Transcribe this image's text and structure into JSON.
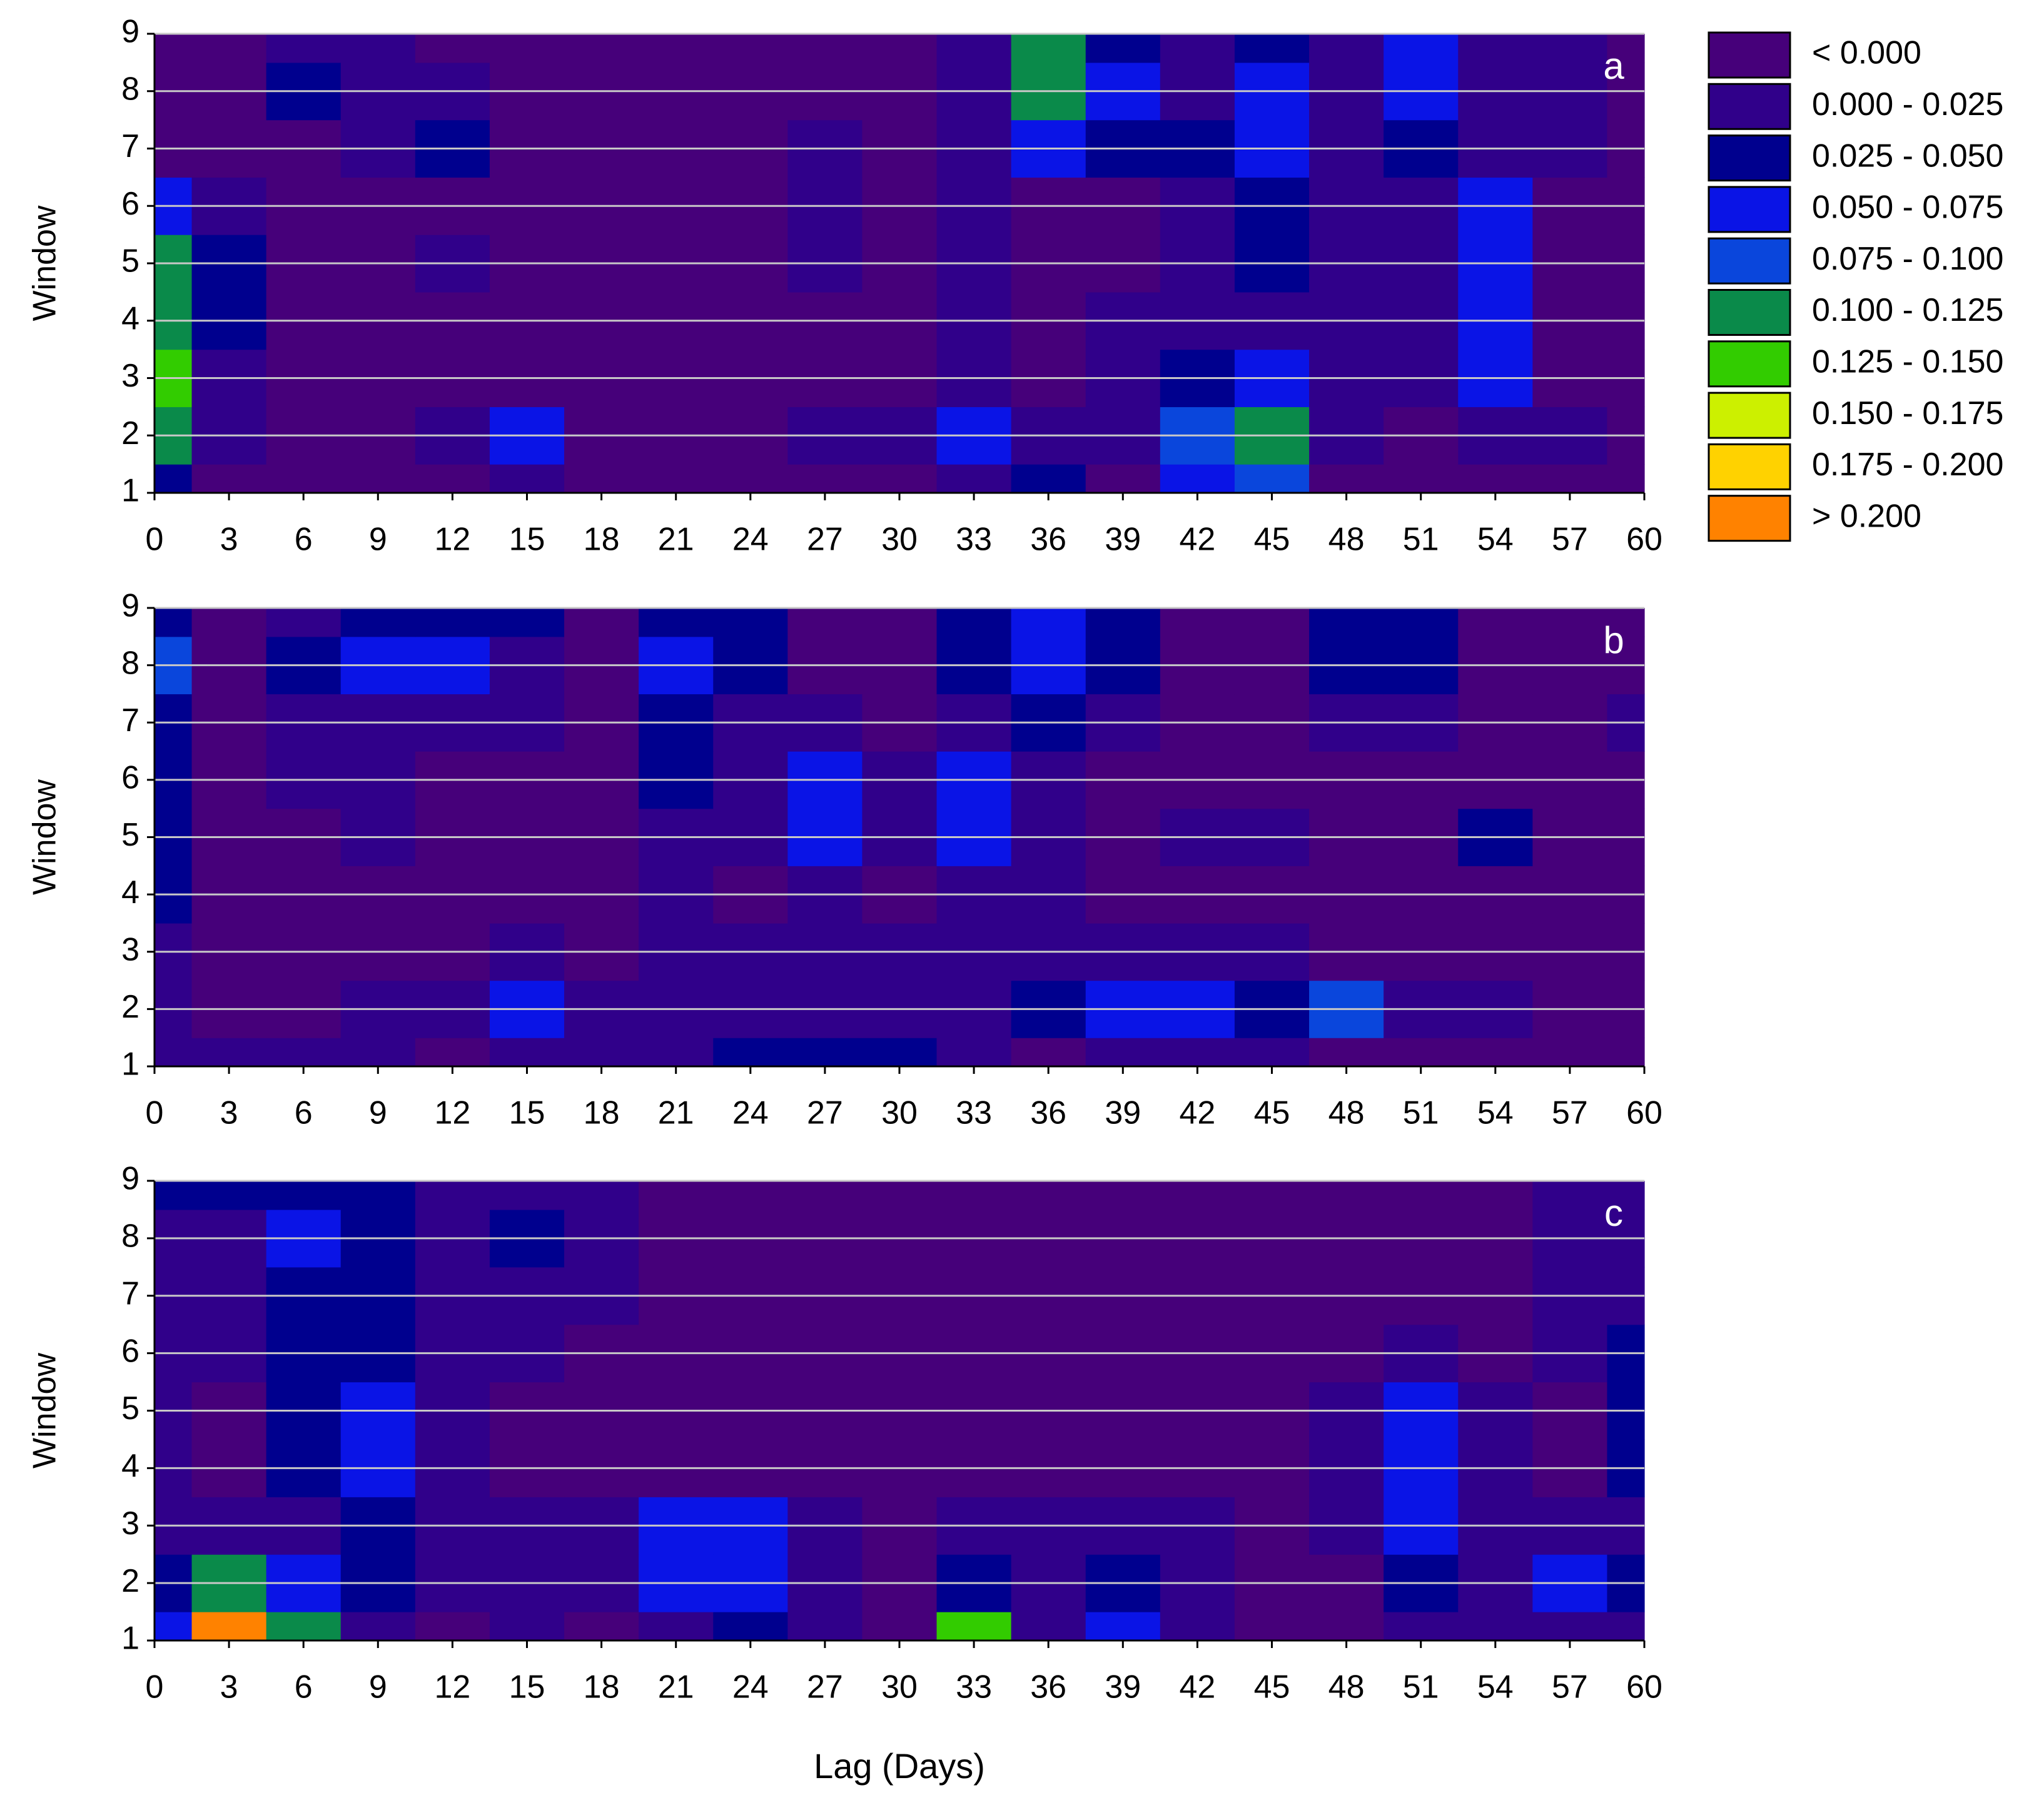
{
  "chart_data": [
    {
      "type": "contour",
      "panel_label": "a",
      "ylabel": "Window",
      "x": [
        0,
        3,
        6,
        9,
        12,
        15,
        18,
        21,
        24,
        27,
        30,
        33,
        36,
        39,
        42,
        45,
        48,
        51,
        54,
        57,
        60
      ],
      "y": [
        1,
        2,
        3,
        4,
        5,
        6,
        7,
        8,
        9
      ],
      "z": [
        [
          0.03,
          -0.01,
          -0.01,
          -0.01,
          -0.01,
          0.01,
          -0.01,
          -0.01,
          -0.01,
          -0.01,
          -0.01,
          0.02,
          0.03,
          -0.01,
          0.06,
          0.08,
          -0.01,
          -0.01,
          -0.01,
          -0.01,
          -0.01
        ],
        [
          0.1,
          0.01,
          -0.01,
          -0.01,
          0.02,
          0.05,
          -0.01,
          -0.01,
          -0.01,
          0.01,
          0.01,
          0.05,
          0.01,
          0.02,
          0.08,
          0.12,
          0.02,
          -0.01,
          0.02,
          0.01,
          -0.01
        ],
        [
          0.13,
          0.02,
          -0.01,
          -0.01,
          -0.01,
          -0.01,
          -0.01,
          -0.01,
          -0.01,
          -0.01,
          -0.01,
          0.02,
          -0.01,
          0.02,
          0.04,
          0.06,
          0.02,
          0.01,
          0.05,
          -0.01,
          -0.01
        ],
        [
          0.12,
          0.03,
          -0.01,
          -0.01,
          -0.01,
          -0.01,
          -0.01,
          -0.01,
          -0.01,
          -0.01,
          -0.01,
          0.01,
          -0.01,
          0.02,
          0.01,
          0.02,
          0.01,
          0.01,
          0.06,
          -0.01,
          -0.01
        ],
        [
          0.11,
          0.03,
          -0.01,
          -0.01,
          0.01,
          -0.01,
          -0.01,
          -0.01,
          -0.01,
          0.01,
          -0.01,
          0.01,
          -0.01,
          -0.01,
          0.02,
          0.03,
          0.01,
          0.02,
          0.07,
          -0.01,
          -0.01
        ],
        [
          0.06,
          0.01,
          -0.01,
          -0.01,
          -0.01,
          -0.01,
          -0.01,
          -0.01,
          -0.01,
          0.01,
          -0.01,
          0.01,
          -0.01,
          -0.01,
          0.02,
          0.04,
          0.01,
          0.02,
          0.06,
          -0.01,
          -0.01
        ],
        [
          -0.01,
          -0.01,
          -0.01,
          0.02,
          0.04,
          -0.01,
          -0.01,
          -0.01,
          -0.01,
          0.01,
          -0.01,
          0.02,
          0.06,
          0.03,
          0.03,
          0.06,
          0.02,
          0.04,
          0.02,
          0.01,
          -0.01
        ],
        [
          -0.01,
          -0.01,
          0.03,
          0.02,
          0.01,
          -0.01,
          -0.01,
          -0.01,
          -0.01,
          -0.01,
          -0.01,
          0.02,
          0.11,
          0.06,
          0.02,
          0.07,
          0.02,
          0.06,
          0.02,
          0.01,
          -0.01
        ],
        [
          -0.01,
          -0.01,
          0.02,
          0.02,
          -0.01,
          -0.01,
          -0.01,
          -0.01,
          -0.01,
          -0.01,
          -0.01,
          0.01,
          0.1,
          0.04,
          0.01,
          0.04,
          0.02,
          0.05,
          0.02,
          0.02,
          -0.01
        ]
      ],
      "xlim": [
        0,
        60
      ],
      "ylim": [
        1,
        9
      ],
      "xticks": [
        0,
        3,
        6,
        9,
        12,
        15,
        18,
        21,
        24,
        27,
        30,
        33,
        36,
        39,
        42,
        45,
        48,
        51,
        54,
        57,
        60
      ],
      "yticks": [
        1,
        2,
        3,
        4,
        5,
        6,
        7,
        8,
        9
      ],
      "grid": true,
      "levels": [
        0,
        0.025,
        0.05,
        0.075,
        0.1,
        0.125,
        0.15,
        0.175,
        0.2
      ],
      "legend": [
        {
          "label": "< 0.000",
          "color": "#46007a"
        },
        {
          "label": "0.000 - 0.025",
          "color": "#30008a"
        },
        {
          "label": "0.025 - 0.050",
          "color": "#00008e"
        },
        {
          "label": "0.050 - 0.075",
          "color": "#0a14e6"
        },
        {
          "label": "0.075 - 0.100",
          "color": "#0a46dc"
        },
        {
          "label": "0.100 - 0.125",
          "color": "#0a8a4a"
        },
        {
          "label": "0.125 - 0.150",
          "color": "#32cc00"
        },
        {
          "label": "0.150 - 0.175",
          "color": "#ccf000"
        },
        {
          "label": "0.175 - 0.200",
          "color": "#ffd200"
        },
        {
          "label": "> 0.200",
          "color": "#ff8200"
        }
      ]
    },
    {
      "type": "contour",
      "panel_label": "b",
      "ylabel": "Window",
      "x": [
        0,
        3,
        6,
        9,
        12,
        15,
        18,
        21,
        24,
        27,
        30,
        33,
        36,
        39,
        42,
        45,
        48,
        51,
        54,
        57,
        60
      ],
      "y": [
        1,
        2,
        3,
        4,
        5,
        6,
        7,
        8,
        9
      ],
      "z": [
        [
          0.01,
          0.02,
          0.02,
          0.01,
          -0.01,
          0.01,
          0.01,
          0.01,
          0.03,
          0.03,
          0.04,
          0.02,
          -0.01,
          0.01,
          0.01,
          0.02,
          -0.01,
          -0.01,
          -0.01,
          -0.01,
          -0.01
        ],
        [
          0.01,
          -0.01,
          -0.01,
          0.01,
          0.01,
          0.05,
          0.01,
          0.02,
          0.02,
          0.02,
          0.01,
          0.02,
          0.03,
          0.07,
          0.05,
          0.03,
          0.09,
          0.01,
          0.02,
          -0.01,
          -0.01
        ],
        [
          0.02,
          -0.01,
          -0.01,
          -0.01,
          -0.01,
          0.01,
          -0.01,
          0.01,
          0.01,
          0.02,
          0.01,
          0.01,
          0.01,
          0.02,
          0.01,
          0.01,
          -0.01,
          -0.01,
          -0.01,
          -0.01,
          -0.01
        ],
        [
          0.03,
          -0.01,
          -0.01,
          -0.01,
          -0.01,
          -0.01,
          -0.01,
          0.02,
          -0.01,
          0.02,
          -0.01,
          0.02,
          0.01,
          -0.01,
          -0.01,
          -0.01,
          -0.01,
          -0.01,
          -0.01,
          -0.01,
          -0.01
        ],
        [
          0.04,
          -0.01,
          -0.01,
          0.01,
          -0.01,
          -0.01,
          -0.01,
          0.02,
          0.01,
          0.06,
          0.02,
          0.06,
          0.02,
          -0.01,
          0.01,
          0.01,
          -0.01,
          -0.01,
          0.03,
          -0.01,
          -0.01
        ],
        [
          0.04,
          -0.01,
          0.01,
          0.01,
          -0.01,
          -0.01,
          -0.01,
          0.03,
          0.01,
          0.05,
          0.01,
          0.05,
          0.02,
          -0.01,
          -0.01,
          -0.01,
          -0.01,
          -0.01,
          -0.01,
          -0.01,
          -0.01
        ],
        [
          0.04,
          -0.01,
          0.02,
          0.02,
          0.01,
          0.01,
          -0.01,
          0.04,
          0.02,
          0.01,
          -0.01,
          0.02,
          0.04,
          0.01,
          -0.01,
          -0.01,
          0.02,
          0.02,
          -0.01,
          -0.01,
          0.02
        ],
        [
          0.08,
          -0.01,
          0.03,
          0.06,
          0.06,
          0.02,
          -0.01,
          0.05,
          0.04,
          -0.01,
          -0.01,
          0.03,
          0.07,
          0.04,
          -0.01,
          -0.01,
          0.03,
          0.03,
          -0.01,
          -0.01,
          -0.01
        ],
        [
          0.03,
          -0.01,
          0.02,
          0.04,
          0.04,
          0.03,
          -0.01,
          0.03,
          0.03,
          -0.01,
          -0.01,
          0.03,
          0.05,
          0.04,
          -0.01,
          -0.01,
          0.03,
          0.03,
          -0.01,
          -0.01,
          -0.01
        ]
      ],
      "xlim": [
        0,
        60
      ],
      "ylim": [
        1,
        9
      ],
      "xticks": [
        0,
        3,
        6,
        9,
        12,
        15,
        18,
        21,
        24,
        27,
        30,
        33,
        36,
        39,
        42,
        45,
        48,
        51,
        54,
        57,
        60
      ],
      "yticks": [
        1,
        2,
        3,
        4,
        5,
        6,
        7,
        8,
        9
      ],
      "grid": true
    },
    {
      "type": "contour",
      "panel_label": "c",
      "ylabel": "Window",
      "xlabel": "Lag (Days)",
      "x": [
        0,
        3,
        6,
        9,
        12,
        15,
        18,
        21,
        24,
        27,
        30,
        33,
        36,
        39,
        42,
        45,
        48,
        51,
        54,
        57,
        60
      ],
      "y": [
        1,
        2,
        3,
        4,
        5,
        6,
        7,
        8,
        9
      ],
      "z": [
        [
          0.06,
          0.22,
          0.1,
          0.02,
          -0.01,
          0.01,
          -0.01,
          0.02,
          0.03,
          0.01,
          -0.01,
          0.14,
          0.01,
          0.05,
          0.01,
          -0.01,
          -0.01,
          0.02,
          0.02,
          0.02,
          0.01
        ],
        [
          0.04,
          0.12,
          0.05,
          0.03,
          0.01,
          0.01,
          0.01,
          0.05,
          0.07,
          0.01,
          -0.01,
          0.04,
          0.02,
          0.03,
          0.02,
          -0.01,
          -0.01,
          0.04,
          0.02,
          0.06,
          0.04
        ],
        [
          0.02,
          0.01,
          0.02,
          0.03,
          0.01,
          0.02,
          0.02,
          0.05,
          0.07,
          0.01,
          -0.01,
          0.01,
          0.02,
          0.02,
          0.02,
          -0.01,
          0.02,
          0.05,
          0.02,
          0.01,
          0.01
        ],
        [
          0.02,
          -0.01,
          0.03,
          0.06,
          0.01,
          -0.01,
          -0.01,
          -0.01,
          -0.01,
          -0.01,
          -0.01,
          -0.01,
          -0.01,
          -0.01,
          -0.01,
          -0.01,
          0.02,
          0.06,
          0.01,
          -0.01,
          0.03
        ],
        [
          0.01,
          -0.01,
          0.04,
          0.06,
          0.01,
          -0.01,
          -0.01,
          -0.01,
          -0.01,
          -0.01,
          -0.01,
          -0.01,
          -0.01,
          -0.01,
          -0.01,
          -0.01,
          0.02,
          0.06,
          0.01,
          -0.01,
          0.03
        ],
        [
          0.01,
          0.01,
          0.04,
          0.04,
          0.02,
          0.01,
          -0.01,
          -0.01,
          -0.01,
          -0.01,
          -0.01,
          -0.01,
          -0.01,
          -0.01,
          -0.01,
          -0.01,
          -0.01,
          0.01,
          -0.01,
          0.01,
          0.03
        ],
        [
          0.02,
          0.02,
          0.04,
          0.04,
          0.02,
          0.02,
          0.01,
          -0.01,
          -0.01,
          -0.01,
          -0.01,
          -0.01,
          -0.01,
          -0.01,
          -0.01,
          -0.01,
          -0.01,
          -0.01,
          -0.01,
          0.01,
          0.02
        ],
        [
          0.02,
          0.02,
          0.05,
          0.04,
          0.02,
          0.03,
          0.02,
          -0.01,
          -0.01,
          -0.01,
          -0.01,
          -0.01,
          -0.01,
          -0.01,
          -0.01,
          -0.01,
          -0.01,
          -0.01,
          -0.01,
          0.02,
          0.02
        ],
        [
          0.03,
          0.04,
          0.04,
          0.04,
          0.02,
          0.02,
          0.02,
          -0.01,
          -0.01,
          -0.01,
          -0.01,
          -0.01,
          -0.01,
          -0.01,
          -0.01,
          -0.01,
          -0.01,
          -0.01,
          -0.01,
          0.02,
          0.02
        ]
      ],
      "xlim": [
        0,
        60
      ],
      "ylim": [
        1,
        9
      ],
      "xticks": [
        0,
        3,
        6,
        9,
        12,
        15,
        18,
        21,
        24,
        27,
        30,
        33,
        36,
        39,
        42,
        45,
        48,
        51,
        54,
        57,
        60
      ],
      "yticks": [
        1,
        2,
        3,
        4,
        5,
        6,
        7,
        8,
        9
      ],
      "grid": true
    }
  ]
}
